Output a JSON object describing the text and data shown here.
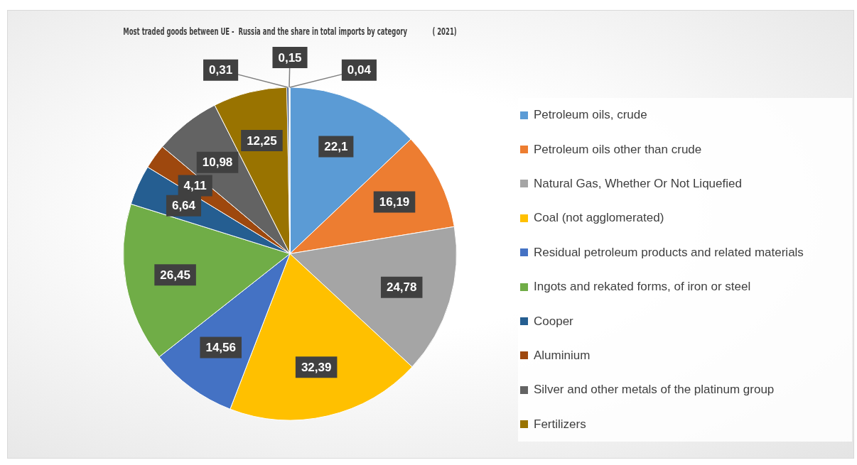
{
  "chart_data": {
    "type": "pie",
    "title": "Most traded goods between UE -  Russia and the share in total imports by category            ( 2021)",
    "categories": [
      "Petroleum oils, crude",
      "Petroleum oils other than crude",
      "Natural Gas, Whether Or Not Liquefied",
      "Coal (not agglomerated)",
      "Residual petroleum products and related materials",
      "Ingots and rekated forms, of iron or steel",
      "Cooper",
      "Aluminium",
      "Silver and other metals of the platinum group",
      "Fertilizers",
      null,
      null,
      null
    ],
    "values": [
      22.1,
      16.19,
      24.78,
      32.39,
      14.56,
      26.45,
      6.64,
      4.11,
      10.98,
      12.25,
      0.31,
      0.15,
      0.04
    ],
    "value_labels": [
      "22,1",
      "16,19",
      "24,78",
      "32,39",
      "14,56",
      "26,45",
      "6,64",
      "4,11",
      "10,98",
      "12,25",
      "0,31",
      "0,15",
      "0,04"
    ],
    "colors": [
      "#5b9bd5",
      "#ed7d31",
      "#a5a5a5",
      "#ffc000",
      "#4472c4",
      "#70ad47",
      "#255e91",
      "#9e480e",
      "#636363",
      "#997300",
      "#264478",
      "#2f5597",
      "#43682b"
    ],
    "legend": "right"
  }
}
